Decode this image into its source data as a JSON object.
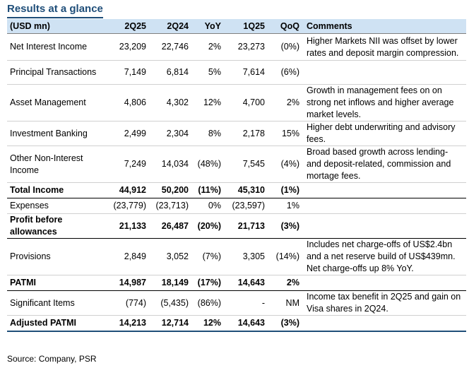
{
  "title": "Results at a glance",
  "headers": [
    "(USD mn)",
    "2Q25",
    "2Q24",
    "YoY",
    "1Q25",
    "QoQ",
    "Comments"
  ],
  "rows": [
    {
      "label": "Net Interest Income",
      "q225": "23,209",
      "q224": "22,746",
      "yoy": "2%",
      "q125": "23,273",
      "qoq": "(0%)",
      "comment": "Higher Markets NII was offset by lower rates and deposit margin compression.",
      "bold": false
    },
    {
      "label": "Principal Transactions",
      "q225": "7,149",
      "q224": "6,814",
      "yoy": "5%",
      "q125": "7,614",
      "qoq": "(6%)",
      "comment": "",
      "bold": false
    },
    {
      "label": "Asset Management",
      "q225": "4,806",
      "q224": "4,302",
      "yoy": "12%",
      "q125": "4,700",
      "qoq": "2%",
      "comment": "Growth in management fees on on strong net inflows and higher average market levels.",
      "bold": false
    },
    {
      "label": "Investment Banking",
      "q225": "2,499",
      "q224": "2,304",
      "yoy": "8%",
      "q125": "2,178",
      "qoq": "15%",
      "comment": "Higher debt underwriting and advisory fees.",
      "bold": false
    },
    {
      "label": "Other Non-Interest Income",
      "q225": "7,249",
      "q224": "14,034",
      "yoy": "(48%)",
      "q125": "7,545",
      "qoq": "(4%)",
      "comment": "Broad based growth across lending- and deposit-related, commission and mortage fees.",
      "bold": false
    },
    {
      "label": "Total Income",
      "q225": "44,912",
      "q224": "50,200",
      "yoy": "(11%)",
      "q125": "45,310",
      "qoq": "(1%)",
      "comment": "",
      "bold": true
    },
    {
      "label": "Expenses",
      "q225": "(23,779)",
      "q224": "(23,713)",
      "yoy": "0%",
      "q125": "(23,597)",
      "qoq": "1%",
      "comment": "",
      "bold": false
    },
    {
      "label": "Profit before allowances",
      "q225": "21,133",
      "q224": "26,487",
      "yoy": "(20%)",
      "q125": "21,713",
      "qoq": "(3%)",
      "comment": "",
      "bold": true
    },
    {
      "label": "Provisions",
      "q225": "2,849",
      "q224": "3,052",
      "yoy": "(7%)",
      "q125": "3,305",
      "qoq": "(14%)",
      "comment": "Includes net charge-offs of US$2.4bn and a net reserve build of US$439mn. Net charge-offs up 8% YoY.",
      "bold": false
    },
    {
      "label": "PATMI",
      "q225": "14,987",
      "q224": "18,149",
      "yoy": "(17%)",
      "q125": "14,643",
      "qoq": "2%",
      "comment": "",
      "bold": true
    },
    {
      "label": "Significant Items",
      "q225": "(774)",
      "q224": "(5,435)",
      "yoy": "(86%)",
      "q125": "-",
      "qoq": "NM",
      "comment": "Income tax benefit in 2Q25 and gain on Visa shares in 2Q24.",
      "bold": false
    },
    {
      "label": "Adjusted PATMI",
      "q225": "14,213",
      "q224": "12,714",
      "yoy": "12%",
      "q125": "14,643",
      "qoq": "(3%)",
      "comment": "",
      "bold": true
    }
  ],
  "source": "Source: Company, PSR"
}
